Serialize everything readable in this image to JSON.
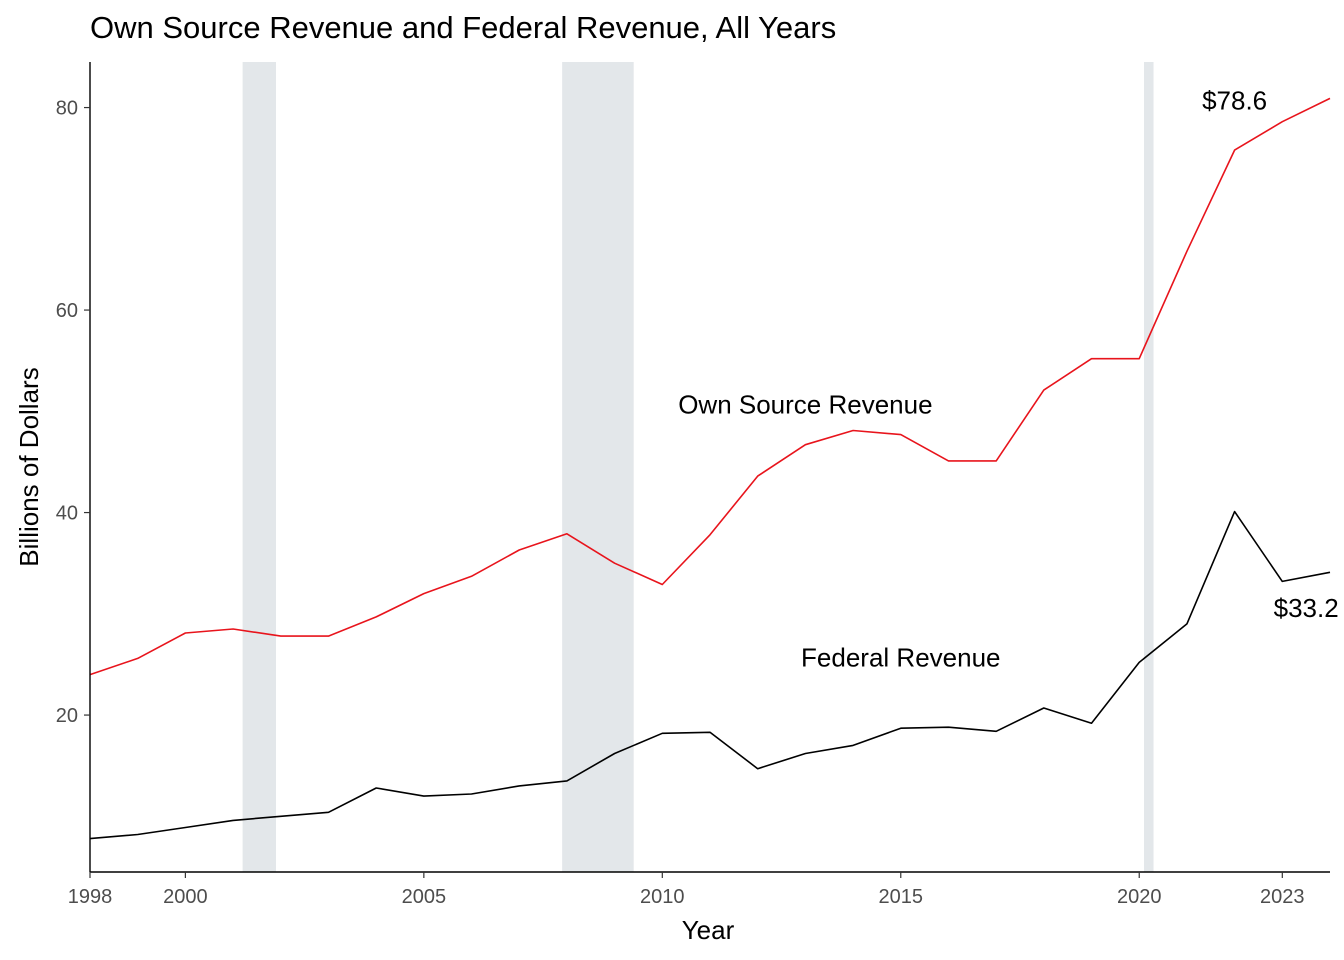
{
  "chart_data": {
    "type": "line",
    "title": "Own Source Revenue and Federal Revenue, All Years",
    "xlabel": "Year",
    "ylabel": "Billions of Dollars",
    "xlim": [
      1998,
      2024
    ],
    "ylim": [
      4.5,
      84.5
    ],
    "x_ticks": [
      1998,
      2000,
      2005,
      2010,
      2015,
      2020,
      2023
    ],
    "y_ticks": [
      20,
      40,
      60,
      80
    ],
    "grid": false,
    "legend": "none (direct labels)",
    "recession_bands": [
      [
        2001.2,
        2001.9
      ],
      [
        2007.9,
        2009.4
      ],
      [
        2020.1,
        2020.3
      ]
    ],
    "band_color": "#e3e7ea",
    "x": [
      1998,
      1999,
      2000,
      2001,
      2002,
      2003,
      2004,
      2005,
      2006,
      2007,
      2008,
      2009,
      2010,
      2011,
      2012,
      2013,
      2014,
      2015,
      2016,
      2017,
      2018,
      2019,
      2020,
      2021,
      2022,
      2023,
      2024
    ],
    "series": [
      {
        "name": "Own Source Revenue",
        "color": "#e8141c",
        "values": [
          24.0,
          25.6,
          28.1,
          28.5,
          27.8,
          27.8,
          29.7,
          32.0,
          33.7,
          36.3,
          37.9,
          35.0,
          32.9,
          37.8,
          43.6,
          46.7,
          48.1,
          47.7,
          45.1,
          45.1,
          52.1,
          55.2,
          55.2,
          65.8,
          75.8,
          78.6,
          80.9
        ]
      },
      {
        "name": "Federal Revenue",
        "color": "#000000",
        "values": [
          7.8,
          8.2,
          8.9,
          9.6,
          10.0,
          10.4,
          12.8,
          12.0,
          12.2,
          13.0,
          13.5,
          16.2,
          18.2,
          18.3,
          14.7,
          16.2,
          17.0,
          18.7,
          18.8,
          18.4,
          20.7,
          19.2,
          25.2,
          29.0,
          40.1,
          33.2,
          34.1
        ]
      }
    ],
    "annotations": [
      {
        "text": "Own Source Revenue",
        "x": 2013.0,
        "y": 49.8
      },
      {
        "text": "Federal Revenue",
        "x": 2015.0,
        "y": 24.8
      },
      {
        "text": "$78.6",
        "x": 2022.0,
        "y": 79.8
      },
      {
        "text": "$33.2",
        "x": 2023.5,
        "y": 29.7
      }
    ]
  }
}
